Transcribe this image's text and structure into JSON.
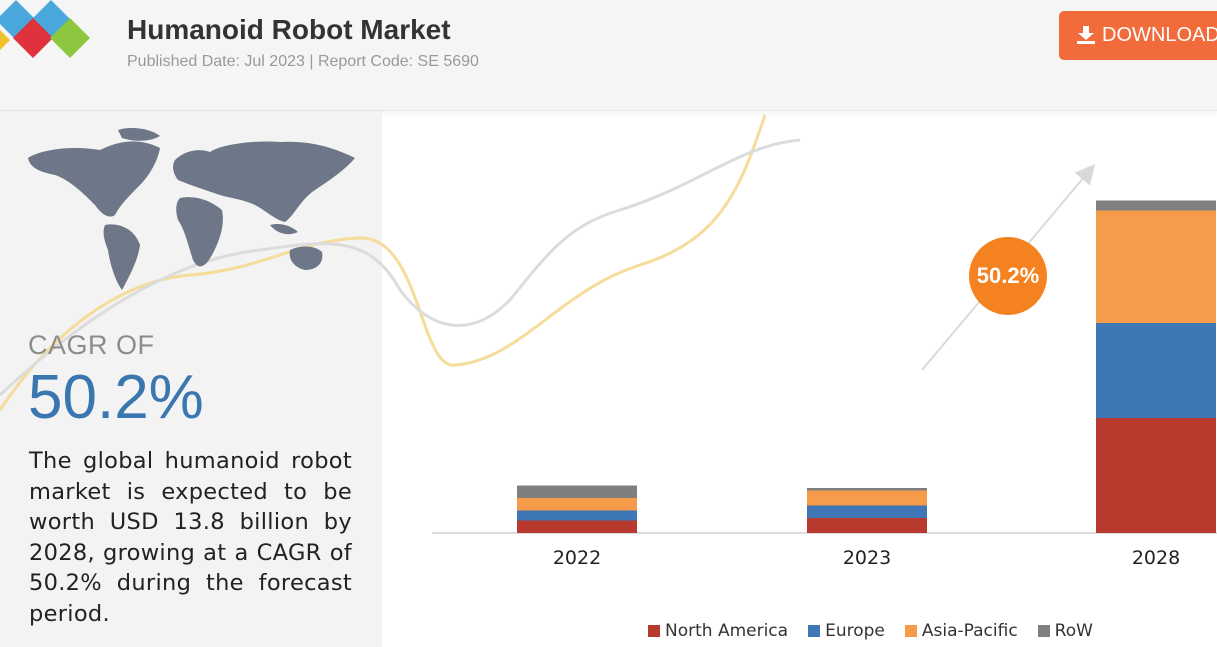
{
  "header": {
    "title": "Humanoid Robot Market",
    "subtitle": "Published Date: Jul 2023 | Report Code: SE 5690",
    "download_label": "DOWNLOAD"
  },
  "summary": {
    "cagr_label": "CAGR OF",
    "cagr_value": "50.2%",
    "description": "The global humanoid robot market is expected to be worth USD 13.8 billion by 2028, growing at a CAGR of 50.2% during the forecast period."
  },
  "colors": {
    "north_america": "#b83a2f",
    "europe": "#3f76b5",
    "asia_pacific": "#f59b4a",
    "row": "#7f7f7f",
    "accent": "#f26b3a",
    "cagr_bubble": "#f58220"
  },
  "chart_data": {
    "type": "bar",
    "stacked": true,
    "categories": [
      "2022",
      "2023",
      "2028"
    ],
    "series": [
      {
        "name": "North America",
        "values": [
          0.5,
          0.6,
          4.6
        ]
      },
      {
        "name": "Europe",
        "values": [
          0.4,
          0.5,
          3.8
        ]
      },
      {
        "name": "Asia-Pacific",
        "values": [
          0.5,
          0.6,
          4.5
        ]
      },
      {
        "name": "RoW",
        "values": [
          0.5,
          0.1,
          0.4
        ]
      }
    ],
    "ylim": [
      0,
      14
    ],
    "annotation": {
      "text": "50.2%"
    },
    "legend_position": "bottom",
    "grid": false
  }
}
